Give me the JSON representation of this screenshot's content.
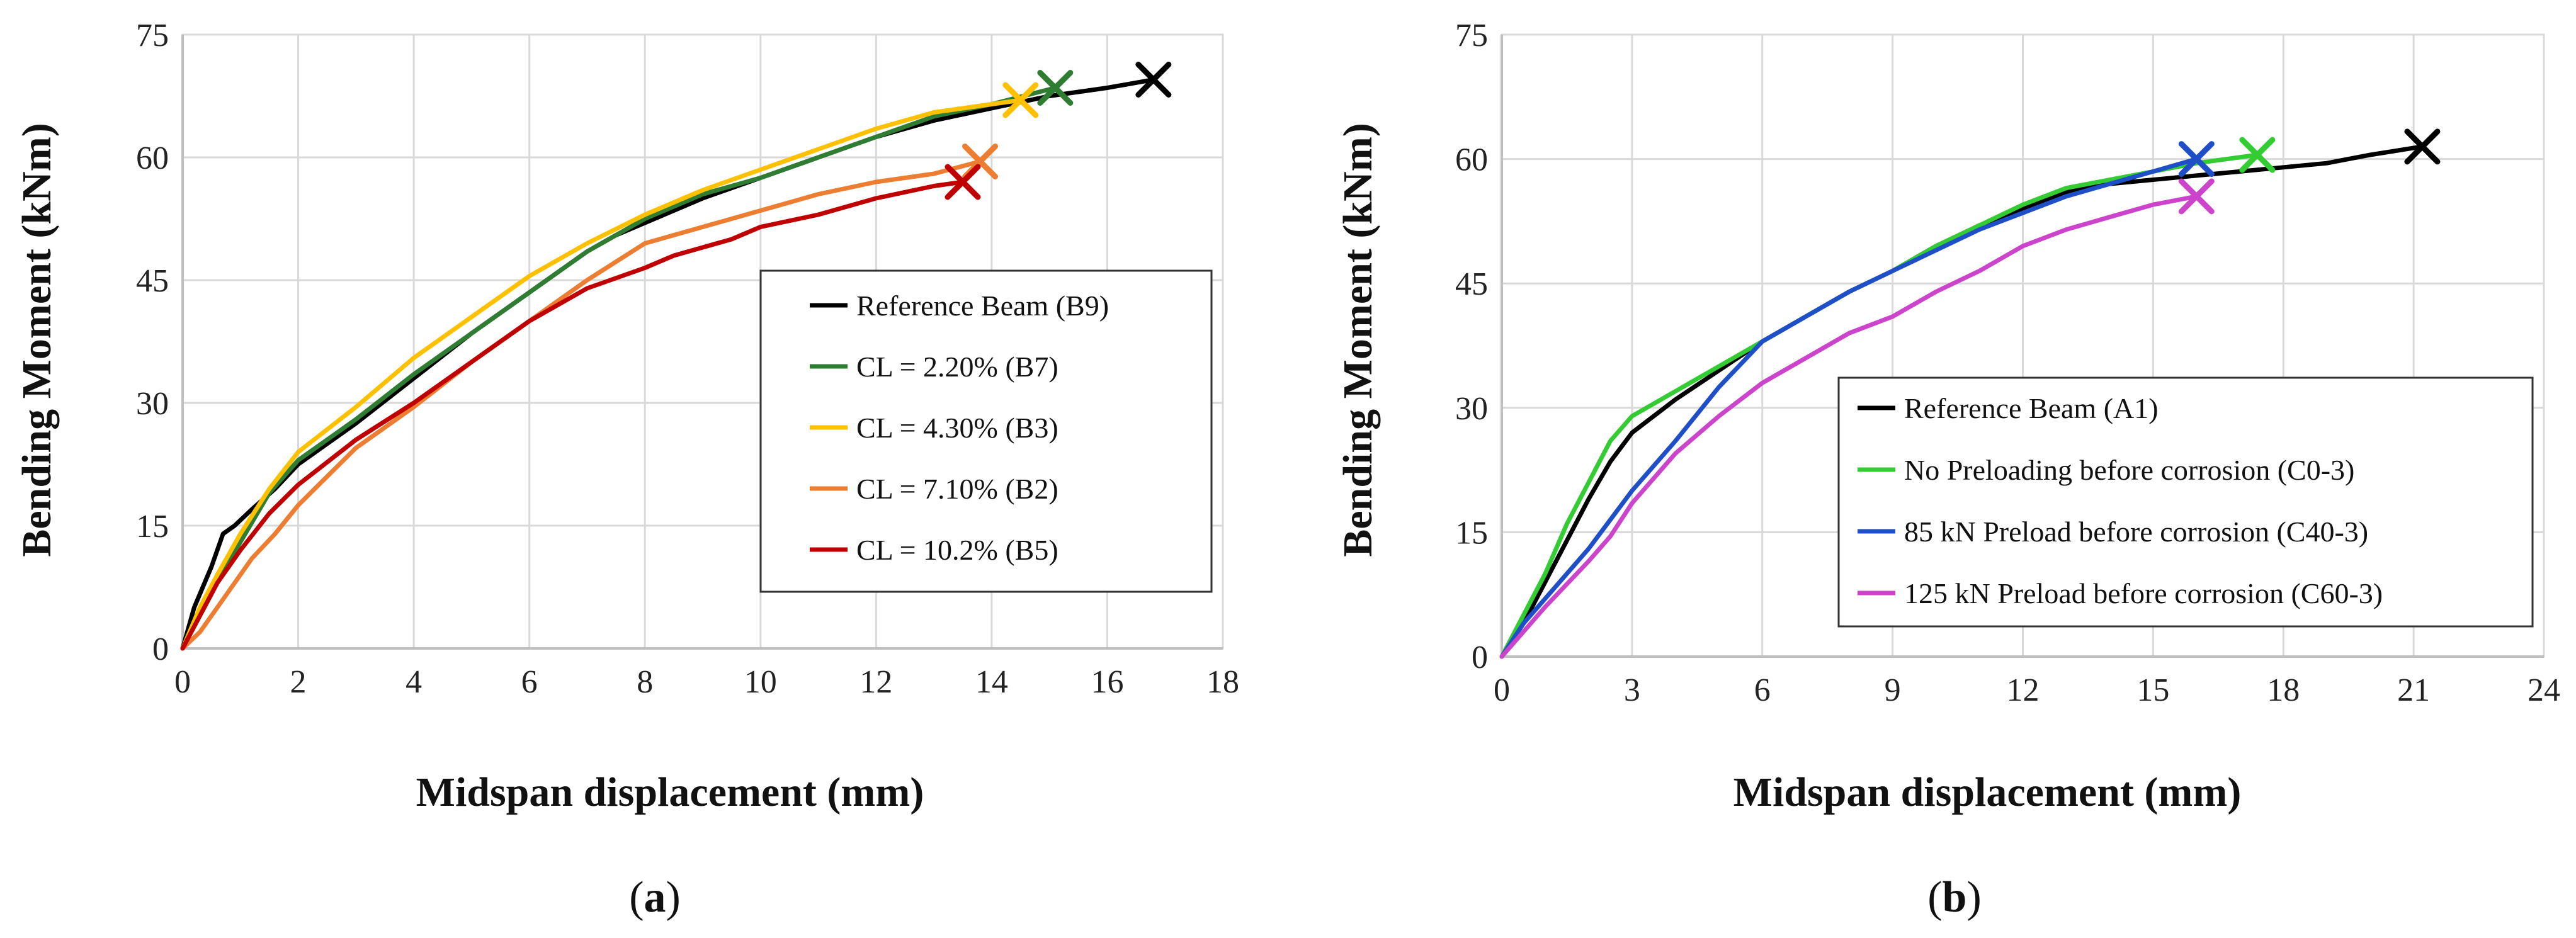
{
  "colors": {
    "black": "#000000",
    "green_dark": "#2e7d32",
    "yellow": "#ffc000",
    "orange": "#ed7d31",
    "red": "#c00000",
    "green_bright": "#33cc33",
    "blue": "#1f4fc8",
    "magenta": "#cc44cc",
    "grid": "#d9d9d9"
  },
  "panels": [
    {
      "label_open": "(",
      "label_letter": "a",
      "label_close": ")"
    },
    {
      "label_open": "(",
      "label_letter": "b",
      "label_close": ")"
    }
  ],
  "chart_data": [
    {
      "type": "line",
      "panel": "a",
      "title": "",
      "xlabel": "Midspan displacement (mm)",
      "ylabel": "Bending Moment (kNm)",
      "xlim": [
        0,
        18
      ],
      "ylim": [
        0,
        75
      ],
      "xticks": [
        0,
        2,
        4,
        6,
        8,
        10,
        12,
        14,
        16,
        18
      ],
      "yticks": [
        0,
        15,
        30,
        45,
        60,
        75
      ],
      "grid": true,
      "legend_position": "center-right",
      "series": [
        {
          "name": "Reference Beam (B9)",
          "color": "#000000",
          "x": [
            0,
            0.2,
            0.5,
            0.7,
            0.9,
            1.2,
            1.6,
            2,
            3,
            4,
            5,
            6,
            7,
            7.5,
            8,
            9,
            10,
            11,
            12,
            13,
            14,
            15,
            16,
            16.8
          ],
          "y": [
            0,
            5,
            10,
            14,
            15,
            17,
            19.5,
            22.5,
            27.5,
            33,
            38.5,
            43.5,
            48.5,
            50.5,
            52,
            55,
            57.5,
            60,
            62.5,
            64.5,
            66,
            67.5,
            68.5,
            69.5
          ],
          "end_marker": {
            "x": 16.8,
            "y": 69.5
          }
        },
        {
          "name": "CL = 2.20% (B7)",
          "color": "#2e7d32",
          "x": [
            0,
            0.3,
            0.6,
            1,
            1.5,
            2,
            3,
            4,
            5,
            6,
            7,
            8,
            9,
            10,
            11,
            12,
            13,
            14,
            15.1
          ],
          "y": [
            0,
            4,
            8,
            13,
            19,
            23,
            28,
            33.5,
            38.5,
            43.5,
            48.5,
            52.5,
            55.5,
            57.5,
            60,
            62.5,
            65,
            66.5,
            68.5
          ],
          "end_marker": {
            "x": 15.1,
            "y": 68.5
          }
        },
        {
          "name": "CL = 4.30% (B3)",
          "color": "#ffc000",
          "x": [
            0,
            0.3,
            0.6,
            1,
            1.5,
            2,
            3,
            4,
            5,
            6,
            7,
            8,
            9,
            10,
            11,
            12,
            13,
            14.5
          ],
          "y": [
            0,
            5,
            9,
            14,
            19.5,
            24,
            29.5,
            35.5,
            40.5,
            45.5,
            49.5,
            53,
            56,
            58.5,
            61,
            63.5,
            65.5,
            67
          ],
          "end_marker": {
            "x": 14.5,
            "y": 67
          }
        },
        {
          "name": "CL = 7.10% (B2)",
          "color": "#ed7d31",
          "x": [
            0,
            0.3,
            0.6,
            0.8,
            1.2,
            1.6,
            2,
            2.5,
            3,
            4,
            5,
            6,
            7,
            8,
            9,
            10,
            11,
            12,
            13,
            13.8
          ],
          "y": [
            0,
            2,
            5,
            7,
            11,
            14,
            17.5,
            21,
            24.5,
            29.5,
            35,
            40,
            45,
            49.5,
            51.5,
            53.5,
            55.5,
            57,
            58,
            59.5
          ],
          "end_marker": {
            "x": 13.8,
            "y": 59.5
          }
        },
        {
          "name": "CL = 10.2% (B5)",
          "color": "#c00000",
          "x": [
            0,
            0.3,
            0.6,
            1,
            1.5,
            2,
            3,
            4,
            5,
            6,
            7,
            8,
            8.5,
            9,
            9.5,
            10,
            11,
            12,
            13,
            13.5
          ],
          "y": [
            0,
            4,
            8,
            12,
            16.5,
            20,
            25.5,
            30,
            35,
            40,
            44,
            46.5,
            48,
            49,
            50,
            51.5,
            53,
            55,
            56.5,
            57
          ],
          "end_marker": {
            "x": 13.5,
            "y": 57
          }
        }
      ]
    },
    {
      "type": "line",
      "panel": "b",
      "title": "",
      "xlabel": "Midspan displacement (mm)",
      "ylabel": "Bending Moment (kNm)",
      "xlim": [
        0,
        24
      ],
      "ylim": [
        0,
        75
      ],
      "xticks": [
        0,
        3,
        6,
        9,
        12,
        15,
        18,
        21,
        24
      ],
      "yticks": [
        0,
        15,
        30,
        45,
        60,
        75
      ],
      "grid": true,
      "legend_position": "bottom-right",
      "series": [
        {
          "name": "Reference Beam (A1)",
          "color": "#000000",
          "x": [
            0,
            0.5,
            1,
            1.5,
            2,
            2.5,
            3,
            4,
            5,
            6,
            7,
            8,
            9,
            10,
            11,
            12,
            13,
            14,
            15,
            16,
            17,
            18,
            19,
            20,
            21.2
          ],
          "y": [
            0,
            4,
            9,
            14,
            19,
            23.5,
            27,
            31,
            34.5,
            38,
            41,
            44,
            46.5,
            49.5,
            52,
            54,
            56,
            57,
            57.5,
            58,
            58.5,
            59,
            59.5,
            60.5,
            61.5
          ],
          "end_marker": {
            "x": 21.2,
            "y": 61.5
          }
        },
        {
          "name": "No Preloading before corrosion (C0-3)",
          "color": "#33cc33",
          "x": [
            0,
            0.5,
            1,
            1.5,
            2,
            2.5,
            3,
            4,
            5,
            6,
            7,
            8,
            9,
            10,
            11,
            12,
            13,
            14,
            15,
            16,
            17.4
          ],
          "y": [
            0,
            5,
            10,
            16,
            21,
            26,
            29,
            32,
            35,
            38,
            41,
            44,
            46.5,
            49.5,
            52,
            54.5,
            56.5,
            57.5,
            58.5,
            59.5,
            60.5
          ],
          "end_marker": {
            "x": 17.4,
            "y": 60.5
          }
        },
        {
          "name": "85 kN Preload before corrosion (C40-3)",
          "color": "#1f4fc8",
          "x": [
            0,
            0.5,
            1,
            2,
            3,
            4,
            5,
            6,
            7,
            8,
            9,
            10,
            11,
            12,
            13,
            14,
            15,
            16
          ],
          "y": [
            0,
            4,
            7,
            13,
            20,
            26,
            32.5,
            38,
            41,
            44,
            46.5,
            49,
            51.5,
            53.5,
            55.5,
            57,
            58.5,
            60
          ],
          "end_marker": {
            "x": 16,
            "y": 60
          }
        },
        {
          "name": "125 kN Preload before corrosion (C60-3)",
          "color": "#cc44cc",
          "x": [
            0,
            0.5,
            1,
            2,
            2.5,
            3,
            4,
            5,
            6,
            7,
            8,
            9,
            10,
            11,
            12,
            13,
            14,
            15,
            16
          ],
          "y": [
            0,
            3,
            6,
            11.5,
            14.5,
            18.5,
            24.5,
            29,
            33,
            36,
            39,
            41,
            44,
            46.5,
            49.5,
            51.5,
            53,
            54.5,
            55.5
          ],
          "end_marker": {
            "x": 16,
            "y": 55.5
          }
        }
      ]
    }
  ]
}
